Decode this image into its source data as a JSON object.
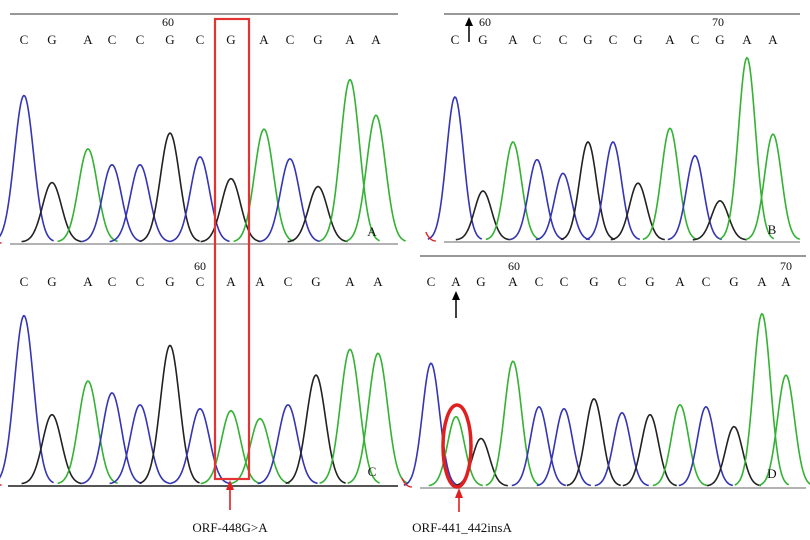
{
  "colors": {
    "A": "#33b233",
    "C": "#3535b5",
    "G": "#222222",
    "T": "#e02020",
    "highlight": "#e33333",
    "axis": "#666666",
    "text": "#111111"
  },
  "panels": [
    {
      "id": "A",
      "label": "A",
      "bases": [
        "C",
        "G",
        "A",
        "C",
        "C",
        "G",
        "C",
        "G",
        "A",
        "C",
        "G",
        "A",
        "A"
      ],
      "position_labels": [
        "60"
      ],
      "peak_heights": [
        0.74,
        0.3,
        0.47,
        0.39,
        0.39,
        0.55,
        0.43,
        0.32,
        0.57,
        0.42,
        0.28,
        0.82,
        0.64
      ]
    },
    {
      "id": "B",
      "label": "B",
      "bases": [
        "C",
        "G",
        "A",
        "C",
        "C",
        "G",
        "C",
        "G",
        "A",
        "C",
        "G",
        "A",
        "A"
      ],
      "position_labels": [
        "60",
        "70"
      ],
      "peak_heights": [
        0.73,
        0.25,
        0.5,
        0.41,
        0.34,
        0.5,
        0.5,
        0.29,
        0.57,
        0.43,
        0.2,
        0.93,
        0.54
      ]
    },
    {
      "id": "C",
      "label": "C",
      "bases": [
        "C",
        "G",
        "A",
        "C",
        "C",
        "G",
        "C",
        "A",
        "A",
        "C",
        "G",
        "A",
        "A"
      ],
      "position_labels": [
        "60"
      ],
      "peak_heights": [
        0.85,
        0.35,
        0.52,
        0.46,
        0.4,
        0.7,
        0.38,
        0.37,
        0.33,
        0.4,
        0.55,
        0.68,
        0.66
      ]
    },
    {
      "id": "D",
      "label": "D",
      "bases": [
        "C",
        "A",
        "G",
        "A",
        "C",
        "C",
        "G",
        "C",
        "G",
        "A",
        "C",
        "G",
        "A",
        "A"
      ],
      "position_labels": [
        "60",
        "70"
      ],
      "peak_heights": [
        0.62,
        0.35,
        0.24,
        0.63,
        0.4,
        0.39,
        0.44,
        0.37,
        0.36,
        0.41,
        0.4,
        0.3,
        0.87,
        0.56
      ]
    }
  ],
  "annotations": {
    "substitution": "ORF-448G>A",
    "insertion": "ORF-441_442insA"
  }
}
